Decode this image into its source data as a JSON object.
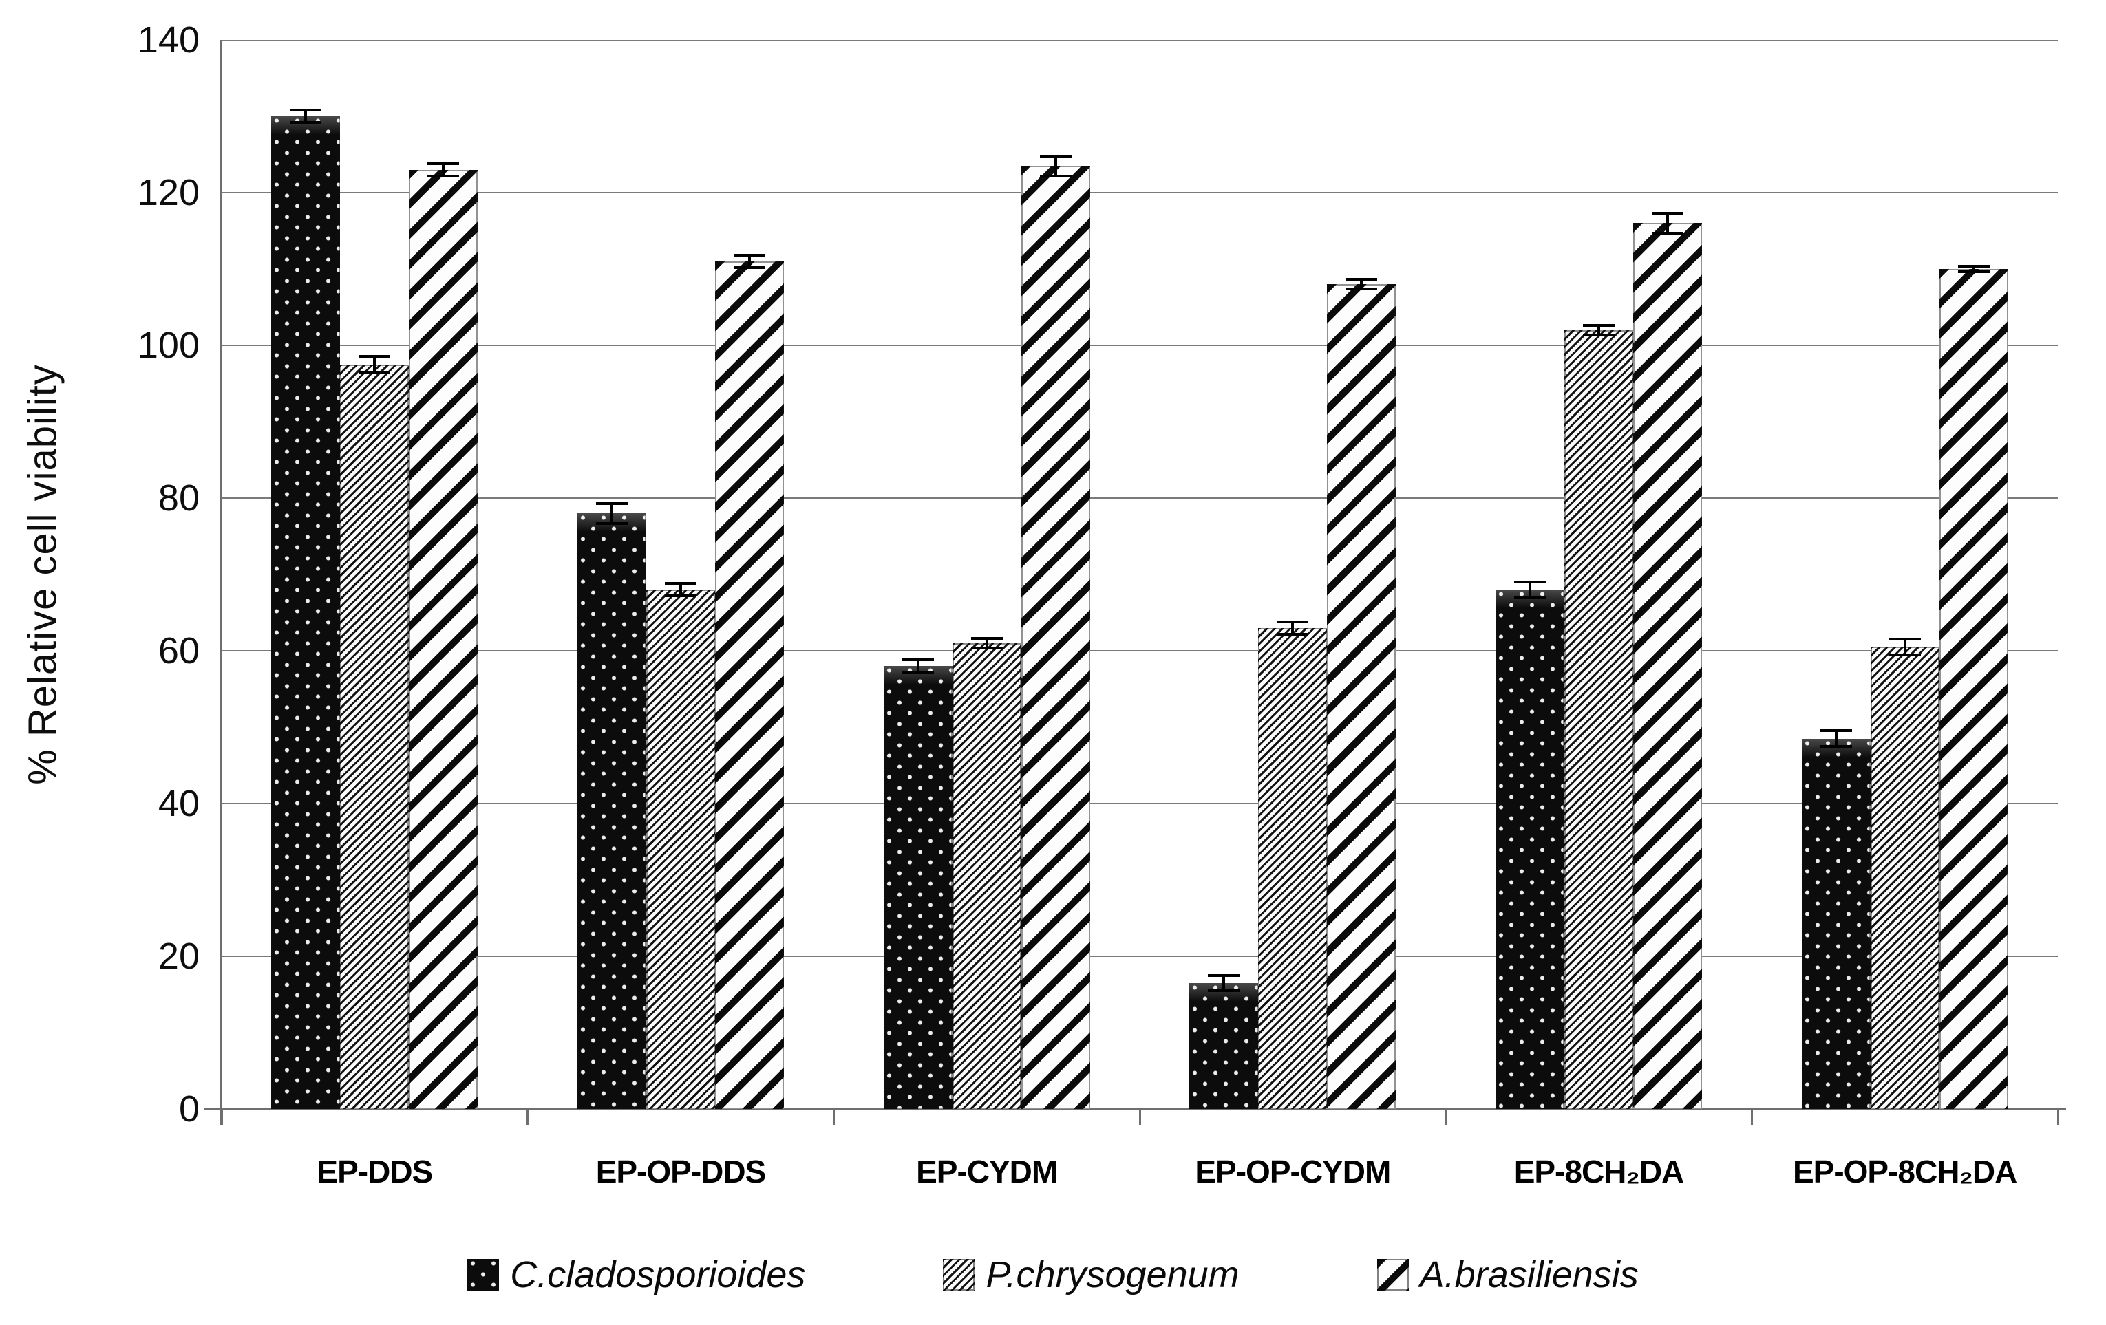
{
  "chart_data": {
    "type": "bar",
    "title": "",
    "xlabel": "",
    "ylabel": "% Relative cell viability",
    "ylim": [
      0,
      140
    ],
    "yticks": [
      0,
      20,
      40,
      60,
      80,
      100,
      120,
      140
    ],
    "grid": true,
    "legend_position": "bottom",
    "error_bars": true,
    "categories": [
      "EP-DDS",
      "EP-OP-DDS",
      "EP-CYDM",
      "EP-OP-CYDM",
      "EP-8CH₂DA",
      "EP-OP-8CH₂DA"
    ],
    "series": [
      {
        "name": "C.cladosporioides",
        "pattern": "black-with-white-dots",
        "values": [
          130,
          78,
          58,
          16.5,
          68,
          48.5
        ],
        "errors": [
          1.0,
          1.5,
          1.0,
          1.2,
          1.2,
          1.2
        ]
      },
      {
        "name": "P.chrysogenum",
        "pattern": "fine-diagonal-hatch",
        "values": [
          97.5,
          68,
          61,
          63,
          102,
          60.5
        ],
        "errors": [
          1.2,
          1.0,
          0.8,
          1.0,
          0.8,
          1.2
        ]
      },
      {
        "name": "A.brasiliensis",
        "pattern": "wide-diagonal-stripes",
        "values": [
          123,
          111,
          123.5,
          108,
          116,
          110
        ],
        "errors": [
          1.0,
          1.0,
          1.5,
          0.8,
          1.5,
          0.5
        ]
      }
    ]
  },
  "colors": {
    "background": "#ffffff",
    "grid": "#7b7b7b",
    "axis": "#6f6f6f",
    "text": "#000000",
    "bar_black": "#0c0c0c"
  }
}
